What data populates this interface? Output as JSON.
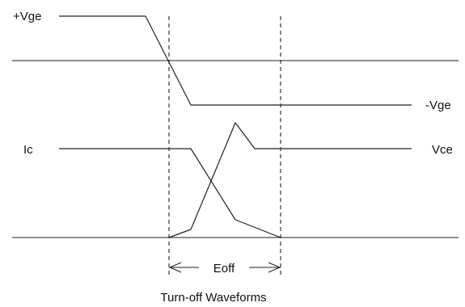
{
  "labels": {
    "pos_vge": "+Vge",
    "neg_vge": "-Vge",
    "ic": "Ic",
    "vce": "Vce",
    "eoff": "Eoff",
    "caption": "Turn-off Waveforms"
  },
  "colors": {
    "line": "#222222",
    "background": "#ffffff"
  }
}
